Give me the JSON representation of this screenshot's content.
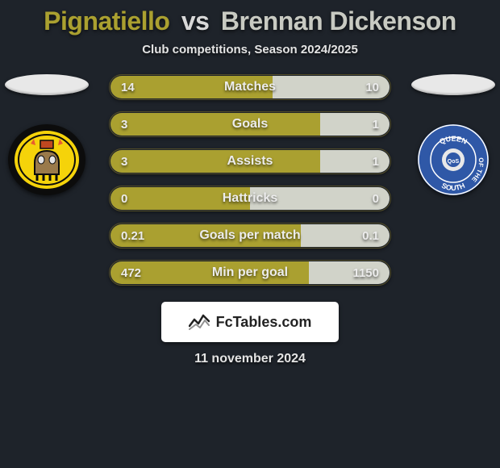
{
  "title": {
    "player1": "Pignatiello",
    "vs": "vs",
    "player2": "Brennan Dickenson",
    "player1_color": "#aaa030",
    "player2_color": "#c8cac2"
  },
  "subtitle": "Club competitions, Season 2024/2025",
  "branding": "FcTables.com",
  "date": "11 november 2024",
  "colors": {
    "bg": "#1e232a",
    "bar_left": "#aaa030",
    "bar_right": "#d1d3c9",
    "bar_border": "#544e28",
    "text": "#ececec"
  },
  "stats": [
    {
      "label": "Matches",
      "v1": "14",
      "v2": "10",
      "pct": 58
    },
    {
      "label": "Goals",
      "v1": "3",
      "v2": "1",
      "pct": 75
    },
    {
      "label": "Assists",
      "v1": "3",
      "v2": "1",
      "pct": 75
    },
    {
      "label": "Hattricks",
      "v1": "0",
      "v2": "0",
      "pct": 50
    },
    {
      "label": "Goals per match",
      "v1": "0.21",
      "v2": "0.1",
      "pct": 68
    },
    {
      "label": "Min per goal",
      "v1": "472",
      "v2": "1150",
      "pct": 71
    }
  ],
  "crest_left": {
    "name": "dumbarton-fc",
    "bg": "#f5d30a",
    "ring": "#0c0c0c"
  },
  "crest_right": {
    "name": "queen-of-south",
    "bg": "#2f58a7",
    "ring": "#ffffff"
  }
}
